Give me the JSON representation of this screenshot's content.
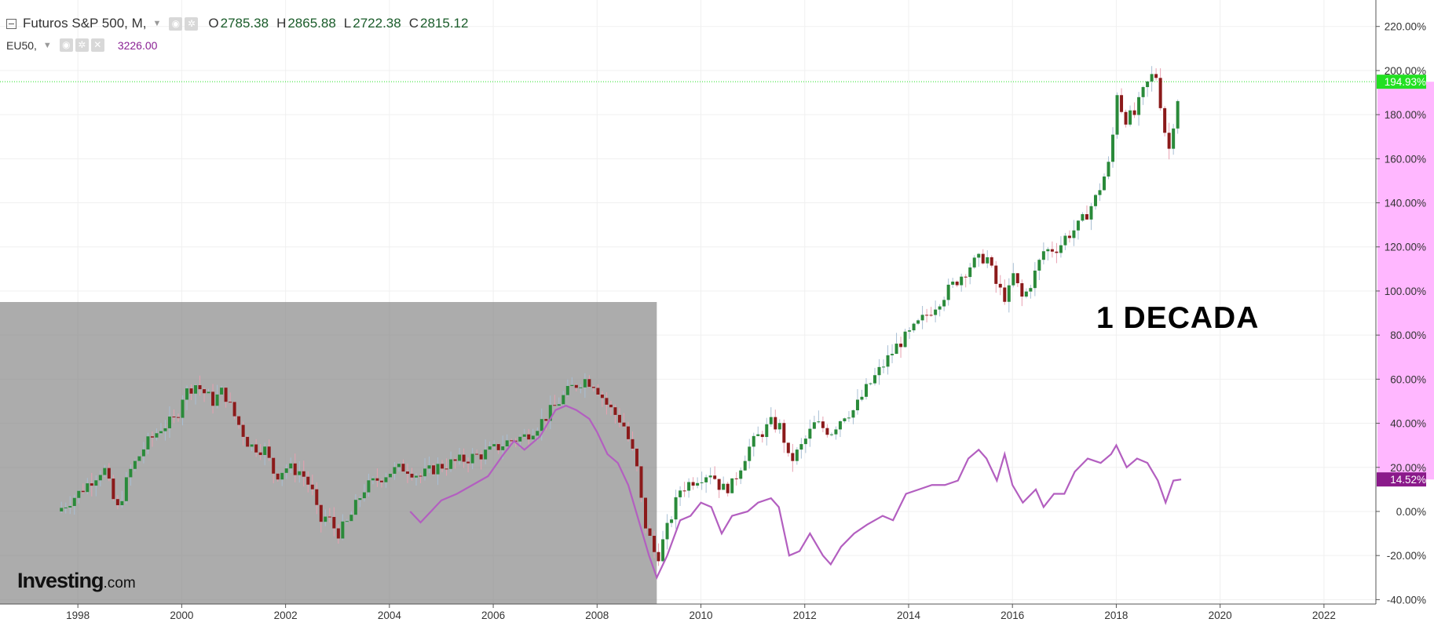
{
  "legend": {
    "main_series": "Futuros S&P 500, M,",
    "o_key": "O",
    "o_val": "2785.38",
    "h_key": "H",
    "h_val": "2865.88",
    "l_key": "L",
    "l_val": "2722.38",
    "c_key": "C",
    "c_val": "2815.12",
    "compare_series": "EU50,",
    "compare_value": "3226.00"
  },
  "icons": [
    "eye-icon",
    "gear-icon",
    "close-icon",
    "caret-down-icon",
    "collapse-icon"
  ],
  "logo": {
    "main": "Investing",
    "suffix": ".com"
  },
  "annotation": "1 DECADA",
  "colors": {
    "up_candle": "#2a8a3a",
    "down_candle": "#8b1a1a",
    "up_wick": "#a8bfd4",
    "down_wick": "#e8a0b0",
    "compare_line": "#b35fc0",
    "price_badge": "#22e022",
    "compare_badge": "#8a1a8a",
    "axis_highlight": "#ffaaff",
    "shade": "#808080"
  },
  "chart_data": {
    "type": "line",
    "title": "Futuros S&P 500, M,",
    "xlabel": "",
    "ylabel": "",
    "x_ticks": [
      "1998",
      "2000",
      "2002",
      "2004",
      "2006",
      "2008",
      "2010",
      "2012",
      "2014",
      "2016",
      "2018",
      "2020",
      "2022"
    ],
    "y_ticks": [
      "220.00%",
      "200.00%",
      "180.00%",
      "160.00%",
      "140.00%",
      "120.00%",
      "100.00%",
      "80.00%",
      "60.00%",
      "40.00%",
      "20.00%",
      "0.00%",
      "-20.00%",
      "-40.00%"
    ],
    "xlim": [
      1996.5,
      2023.0
    ],
    "ylim": [
      -42,
      232
    ],
    "current_labels": {
      "main": "194.93%",
      "compare": "14.52%"
    },
    "current_values": {
      "main": 194.93,
      "compare": 14.52
    },
    "shaded_region": {
      "x_start": 1996.5,
      "x_end": 2009.15,
      "y_top": 95
    },
    "series": [
      {
        "name": "Futuros S&P 500",
        "kind": "candlestick",
        "points": [
          [
            1997.6,
            0
          ],
          [
            1998.0,
            8
          ],
          [
            1998.5,
            20
          ],
          [
            1998.75,
            0
          ],
          [
            1999.0,
            18
          ],
          [
            1999.3,
            30
          ],
          [
            1999.6,
            38
          ],
          [
            1999.9,
            42
          ],
          [
            2000.0,
            52
          ],
          [
            2000.25,
            58
          ],
          [
            2000.6,
            50
          ],
          [
            2000.8,
            55
          ],
          [
            2001.0,
            44
          ],
          [
            2001.3,
            30
          ],
          [
            2001.6,
            28
          ],
          [
            2001.8,
            16
          ],
          [
            2002.0,
            20
          ],
          [
            2002.3,
            18
          ],
          [
            2002.5,
            10
          ],
          [
            2002.65,
            -5
          ],
          [
            2002.8,
            -2
          ],
          [
            2003.0,
            -10
          ],
          [
            2003.2,
            -5
          ],
          [
            2003.5,
            10
          ],
          [
            2003.8,
            15
          ],
          [
            2004.0,
            18
          ],
          [
            2004.3,
            20
          ],
          [
            2004.6,
            16
          ],
          [
            2004.9,
            20
          ],
          [
            2005.2,
            22
          ],
          [
            2005.5,
            24
          ],
          [
            2005.8,
            26
          ],
          [
            2006.0,
            28
          ],
          [
            2006.3,
            32
          ],
          [
            2006.6,
            34
          ],
          [
            2006.9,
            40
          ],
          [
            2007.2,
            48
          ],
          [
            2007.5,
            56
          ],
          [
            2007.75,
            60
          ],
          [
            2007.95,
            58
          ],
          [
            2008.2,
            48
          ],
          [
            2008.5,
            40
          ],
          [
            2008.75,
            22
          ],
          [
            2008.9,
            -4
          ],
          [
            2009.15,
            -22
          ],
          [
            2009.35,
            -8
          ],
          [
            2009.6,
            10
          ],
          [
            2009.9,
            15
          ],
          [
            2010.2,
            18
          ],
          [
            2010.4,
            10
          ],
          [
            2010.6,
            12
          ],
          [
            2010.9,
            28
          ],
          [
            2011.1,
            34
          ],
          [
            2011.35,
            40
          ],
          [
            2011.55,
            38
          ],
          [
            2011.7,
            22
          ],
          [
            2011.9,
            28
          ],
          [
            2012.2,
            40
          ],
          [
            2012.5,
            36
          ],
          [
            2012.75,
            44
          ],
          [
            2012.95,
            46
          ],
          [
            2013.2,
            56
          ],
          [
            2013.5,
            66
          ],
          [
            2013.8,
            76
          ],
          [
            2014.0,
            80
          ],
          [
            2014.3,
            88
          ],
          [
            2014.6,
            96
          ],
          [
            2014.9,
            104
          ],
          [
            2015.2,
            112
          ],
          [
            2015.5,
            116
          ],
          [
            2015.7,
            102
          ],
          [
            2015.9,
            96
          ],
          [
            2016.0,
            108
          ],
          [
            2016.2,
            96
          ],
          [
            2016.4,
            106
          ],
          [
            2016.6,
            118
          ],
          [
            2016.9,
            120
          ],
          [
            2017.0,
            124
          ],
          [
            2017.3,
            130
          ],
          [
            2017.6,
            142
          ],
          [
            2017.9,
            160
          ],
          [
            2018.0,
            192
          ],
          [
            2018.15,
            178
          ],
          [
            2018.35,
            180
          ],
          [
            2018.55,
            192
          ],
          [
            2018.75,
            200
          ],
          [
            2018.9,
            178
          ],
          [
            2019.0,
            162
          ],
          [
            2019.15,
            184
          ],
          [
            2019.25,
            194.93
          ]
        ]
      },
      {
        "name": "EU50",
        "kind": "line",
        "points": [
          [
            2004.4,
            0
          ],
          [
            2004.6,
            -5
          ],
          [
            2004.8,
            0
          ],
          [
            2005.0,
            5
          ],
          [
            2005.3,
            8
          ],
          [
            2005.6,
            12
          ],
          [
            2005.9,
            16
          ],
          [
            2006.2,
            26
          ],
          [
            2006.4,
            32
          ],
          [
            2006.6,
            28
          ],
          [
            2006.9,
            34
          ],
          [
            2007.2,
            46
          ],
          [
            2007.4,
            48
          ],
          [
            2007.6,
            46
          ],
          [
            2007.85,
            42
          ],
          [
            2008.0,
            36
          ],
          [
            2008.2,
            26
          ],
          [
            2008.4,
            22
          ],
          [
            2008.6,
            12
          ],
          [
            2008.8,
            -4
          ],
          [
            2009.0,
            -20
          ],
          [
            2009.15,
            -30
          ],
          [
            2009.35,
            -20
          ],
          [
            2009.6,
            -4
          ],
          [
            2009.8,
            -2
          ],
          [
            2010.0,
            4
          ],
          [
            2010.2,
            2
          ],
          [
            2010.4,
            -10
          ],
          [
            2010.6,
            -2
          ],
          [
            2010.9,
            0
          ],
          [
            2011.1,
            4
          ],
          [
            2011.35,
            6
          ],
          [
            2011.5,
            2
          ],
          [
            2011.7,
            -20
          ],
          [
            2011.9,
            -18
          ],
          [
            2012.1,
            -10
          ],
          [
            2012.35,
            -20
          ],
          [
            2012.5,
            -24
          ],
          [
            2012.7,
            -16
          ],
          [
            2012.95,
            -10
          ],
          [
            2013.2,
            -6
          ],
          [
            2013.5,
            -2
          ],
          [
            2013.7,
            -4
          ],
          [
            2013.95,
            8
          ],
          [
            2014.2,
            10
          ],
          [
            2014.45,
            12
          ],
          [
            2014.7,
            12
          ],
          [
            2014.95,
            14
          ],
          [
            2015.15,
            24
          ],
          [
            2015.35,
            28
          ],
          [
            2015.5,
            24
          ],
          [
            2015.7,
            14
          ],
          [
            2015.85,
            26
          ],
          [
            2016.0,
            12
          ],
          [
            2016.2,
            4
          ],
          [
            2016.45,
            10
          ],
          [
            2016.6,
            2
          ],
          [
            2016.8,
            8
          ],
          [
            2017.0,
            8
          ],
          [
            2017.2,
            18
          ],
          [
            2017.45,
            24
          ],
          [
            2017.7,
            22
          ],
          [
            2017.9,
            26
          ],
          [
            2018.0,
            30
          ],
          [
            2018.2,
            20
          ],
          [
            2018.4,
            24
          ],
          [
            2018.6,
            22
          ],
          [
            2018.8,
            14
          ],
          [
            2018.95,
            4
          ],
          [
            2019.1,
            14
          ],
          [
            2019.25,
            14.52
          ]
        ]
      }
    ]
  }
}
